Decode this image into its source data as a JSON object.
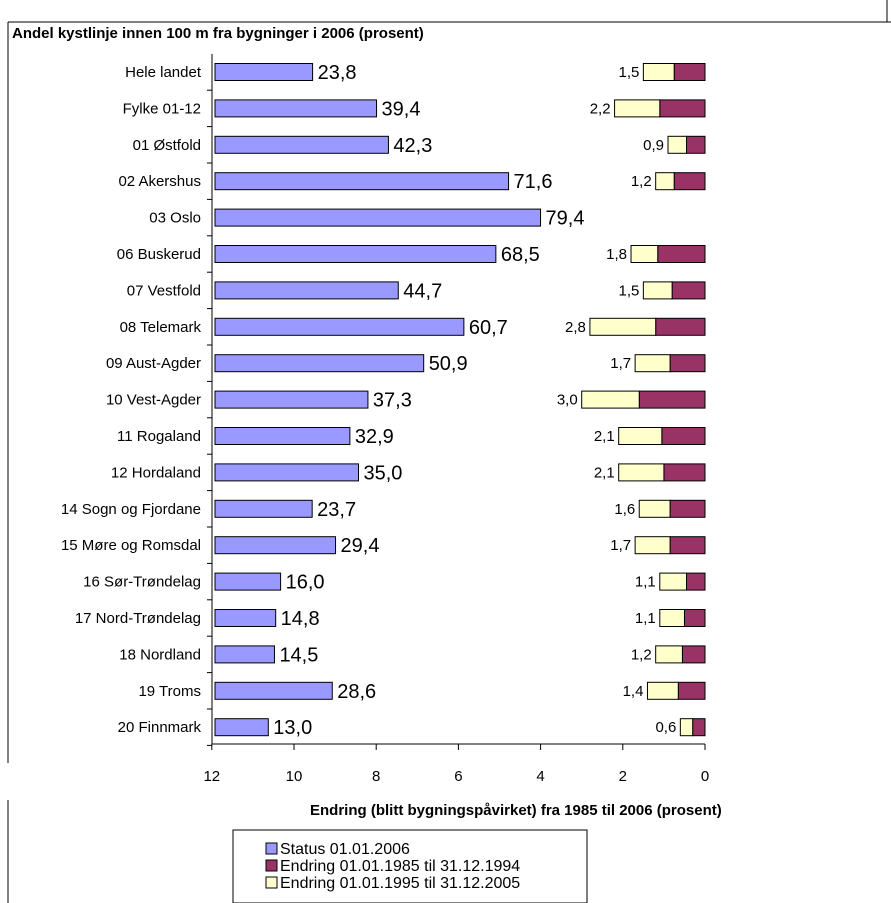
{
  "chart_data": {
    "type": "bar",
    "title": "Andel kystlinje innen 100 m fra bygninger i 2006 (prosent)",
    "categories": [
      "Hele landet",
      "Fylke 01-12",
      "01 Østfold",
      "02 Akershus",
      "03 Oslo",
      "06 Buskerud",
      "07 Vestfold",
      "08 Telemark",
      "09 Aust-Agder",
      "10 Vest-Agder",
      "11 Rogaland",
      "12 Hordaland",
      "14 Sogn og Fjordane",
      "15 Møre og Romsdal",
      "16 Sør-Trøndelag",
      "17 Nord-Trøndelag",
      "18 Nordland",
      "19 Troms",
      "20 Finnmark"
    ],
    "status": {
      "name": "Status 01.01.2006",
      "values": [
        23.8,
        39.4,
        42.3,
        71.6,
        79.4,
        68.5,
        44.7,
        60.7,
        50.9,
        37.3,
        32.9,
        35.0,
        23.7,
        29.4,
        16.0,
        14.8,
        14.5,
        28.6,
        13.0
      ],
      "labels": [
        "23,8",
        "39,4",
        "42,3",
        "71,6",
        "79,4",
        "68,5",
        "44,7",
        "60,7",
        "50,9",
        "37,3",
        "32,9",
        "35,0",
        "23,7",
        "29,4",
        "16,0",
        "14,8",
        "14,5",
        "28,6",
        "13,0"
      ],
      "color": "#9999ff"
    },
    "change_1985_1994": {
      "name": "Endring 01.01.1985 til 31.12.1994",
      "values": [
        0.75,
        1.1,
        0.45,
        0.75,
        null,
        1.15,
        0.8,
        1.2,
        0.85,
        1.6,
        1.05,
        1.0,
        0.85,
        0.85,
        0.45,
        0.5,
        0.55,
        0.65,
        0.3
      ],
      "color": "#993366"
    },
    "change_1995_2005": {
      "name": "Endring 01.01.1995 til 31.12.2005",
      "values": [
        0.75,
        1.1,
        0.45,
        0.45,
        null,
        0.65,
        0.7,
        1.6,
        0.85,
        1.4,
        1.05,
        1.1,
        0.75,
        0.85,
        0.65,
        0.6,
        0.65,
        0.75,
        0.3
      ],
      "color": "#ffffcc"
    },
    "change_totals": {
      "values": [
        1.5,
        2.2,
        0.9,
        1.2,
        null,
        1.8,
        1.5,
        2.8,
        1.7,
        3.0,
        2.1,
        2.1,
        1.6,
        1.7,
        1.1,
        1.1,
        1.2,
        1.4,
        0.6
      ],
      "labels": [
        "1,5",
        "2,2",
        "0,9",
        "1,2",
        "",
        "1,8",
        "1,5",
        "2,8",
        "1,7",
        "3,0",
        "2,1",
        "2,1",
        "1,6",
        "1,7",
        "1,1",
        "1,1",
        "1,2",
        "1,4",
        "0,6"
      ]
    },
    "status_axis": {
      "xlim": [
        0,
        100
      ]
    },
    "change_axis": {
      "xlabel": "Endring (blitt bygningspåvirket) fra 1985 til 2006 (prosent)",
      "xlim": [
        12,
        0
      ],
      "ticks": [
        12,
        10,
        8,
        6,
        4,
        2,
        0
      ],
      "reversed": true
    },
    "legend": {
      "position": "bottom-center",
      "items": [
        "Status 01.01.2006",
        "Endring 01.01.1985 til 31.12.1994",
        "Endring 01.01.1995 til 31.12.2005"
      ]
    },
    "grid": false
  }
}
